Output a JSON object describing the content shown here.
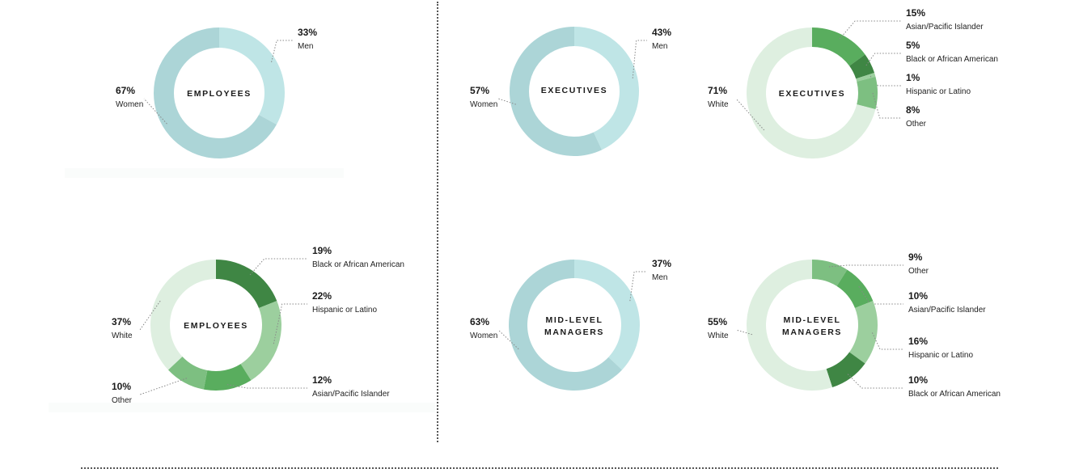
{
  "palette": {
    "gender": {
      "Men": "#bfe5e6",
      "Women": "#acd5d7"
    },
    "ethnicity": {
      "White": "#deefe0",
      "Asian/Pacific Islander": "#59ad5e",
      "Black or African American": "#3f8644",
      "Hispanic or Latino": "#9ccf9e",
      "Other": "#7dbf81"
    }
  },
  "chart_data": [
    {
      "type": "donut",
      "title": "EMPLOYEES",
      "slices": [
        {
          "label": "Men",
          "value": 33,
          "display": "33%"
        },
        {
          "label": "Women",
          "value": 67,
          "display": "67%"
        }
      ]
    },
    {
      "type": "donut",
      "title": "EXECUTIVES",
      "slices": [
        {
          "label": "Men",
          "value": 43,
          "display": "43%"
        },
        {
          "label": "Women",
          "value": 57,
          "display": "57%"
        }
      ]
    },
    {
      "type": "donut",
      "title": "EXECUTIVES",
      "slices": [
        {
          "label": "Asian/Pacific Islander",
          "value": 15,
          "display": "15%"
        },
        {
          "label": "Black or African American",
          "value": 5,
          "display": "5%"
        },
        {
          "label": "Hispanic or Latino",
          "value": 1,
          "display": "1%"
        },
        {
          "label": "Other",
          "value": 8,
          "display": "8%"
        },
        {
          "label": "White",
          "value": 71,
          "display": "71%"
        }
      ]
    },
    {
      "type": "donut",
      "title": "EMPLOYEES",
      "slices": [
        {
          "label": "Black or African American",
          "value": 19,
          "display": "19%"
        },
        {
          "label": "Hispanic or Latino",
          "value": 22,
          "display": "22%"
        },
        {
          "label": "Asian/Pacific Islander",
          "value": 12,
          "display": "12%"
        },
        {
          "label": "Other",
          "value": 10,
          "display": "10%"
        },
        {
          "label": "White",
          "value": 37,
          "display": "37%"
        }
      ]
    },
    {
      "type": "donut",
      "title": "MID-LEVEL MANAGERS",
      "title_lines": [
        "MID-LEVEL",
        "MANAGERS"
      ],
      "slices": [
        {
          "label": "Men",
          "value": 37,
          "display": "37%"
        },
        {
          "label": "Women",
          "value": 63,
          "display": "63%"
        }
      ]
    },
    {
      "type": "donut",
      "title": "MID-LEVEL MANAGERS",
      "title_lines": [
        "MID-LEVEL",
        "MANAGERS"
      ],
      "slices": [
        {
          "label": "Other",
          "value": 9,
          "display": "9%"
        },
        {
          "label": "Asian/Pacific Islander",
          "value": 10,
          "display": "10%"
        },
        {
          "label": "Hispanic or Latino",
          "value": 16,
          "display": "16%"
        },
        {
          "label": "Black or African American",
          "value": 10,
          "display": "10%"
        },
        {
          "label": "White",
          "value": 55,
          "display": "55%"
        }
      ]
    }
  ]
}
